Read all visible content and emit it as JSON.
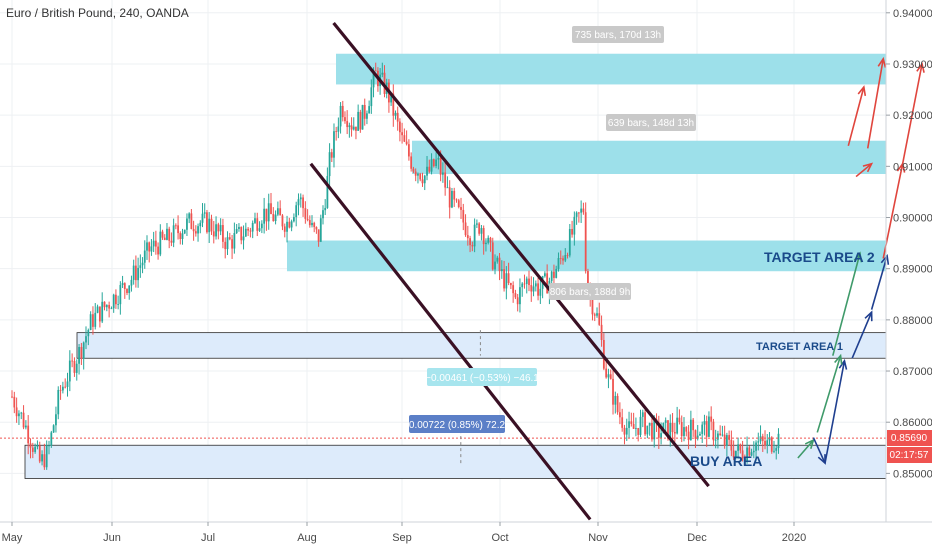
{
  "chart_data": {
    "type": "candlestick",
    "title": "Euro / British Pound, 240, OANDA",
    "x_labels": [
      "May",
      "Jun",
      "Jul",
      "Aug",
      "Sep",
      "Oct",
      "Nov",
      "Dec",
      "2020"
    ],
    "y_ticks": [
      "0.94000",
      "0.93000",
      "0.92000",
      "0.91000",
      "0.90000",
      "0.89000",
      "0.88000",
      "0.87000",
      "0.86000",
      "0.85000"
    ],
    "ylim": [
      0.8405,
      0.9425
    ],
    "current_price": "0.85690",
    "countdown": "02:17:57",
    "price_path": [
      [
        0.0,
        0.865
      ],
      [
        0.3,
        0.86
      ],
      [
        0.5,
        0.856
      ],
      [
        0.7,
        0.852
      ],
      [
        0.9,
        0.854
      ],
      [
        1.2,
        0.866
      ],
      [
        1.7,
        0.874
      ],
      [
        2.0,
        0.88
      ],
      [
        2.5,
        0.884
      ],
      [
        3.0,
        0.888
      ],
      [
        3.5,
        0.894
      ],
      [
        4.0,
        0.896
      ],
      [
        4.5,
        0.899
      ],
      [
        5.0,
        0.899
      ],
      [
        5.5,
        0.895
      ],
      [
        6.0,
        0.8975
      ],
      [
        6.4,
        0.901
      ],
      [
        7.0,
        0.899
      ],
      [
        7.3,
        0.904
      ],
      [
        7.6,
        0.898
      ],
      [
        7.8,
        0.896
      ],
      [
        8.0,
        0.905
      ],
      [
        8.1,
        0.911
      ],
      [
        8.4,
        0.922
      ],
      [
        8.7,
        0.918
      ],
      [
        9.0,
        0.92
      ],
      [
        9.3,
        0.928
      ],
      [
        9.6,
        0.925
      ],
      [
        9.8,
        0.92
      ],
      [
        10.0,
        0.915
      ],
      [
        10.3,
        0.91
      ],
      [
        10.6,
        0.908
      ],
      [
        10.9,
        0.911
      ],
      [
        11.2,
        0.904
      ],
      [
        11.5,
        0.9
      ],
      [
        11.8,
        0.896
      ],
      [
        12.0,
        0.899
      ],
      [
        12.3,
        0.892
      ],
      [
        12.6,
        0.888
      ],
      [
        12.9,
        0.884
      ],
      [
        13.2,
        0.888
      ],
      [
        13.5,
        0.886
      ],
      [
        13.8,
        0.888
      ],
      [
        14.0,
        0.891
      ],
      [
        14.3,
        0.896
      ],
      [
        14.5,
        0.9
      ],
      [
        14.65,
        0.902
      ],
      [
        14.7,
        0.887
      ],
      [
        15.0,
        0.88
      ],
      [
        15.2,
        0.87
      ],
      [
        15.5,
        0.862
      ],
      [
        15.8,
        0.858
      ],
      [
        16.1,
        0.86
      ],
      [
        16.5,
        0.858
      ],
      [
        17.0,
        0.859
      ],
      [
        17.5,
        0.8585
      ],
      [
        17.8,
        0.859
      ],
      [
        18.2,
        0.856
      ],
      [
        18.6,
        0.854
      ],
      [
        19.0,
        0.856
      ],
      [
        19.3,
        0.8555
      ],
      [
        19.6,
        0.857
      ]
    ],
    "zones": [
      {
        "name": "target-zone-2-top",
        "from": 0.926,
        "to": 0.932,
        "style": "cyan"
      },
      {
        "name": "target-zone-2-mid",
        "from": 0.9085,
        "to": 0.915,
        "style": "cyan"
      },
      {
        "name": "target-zone-2-low",
        "from": 0.8895,
        "to": 0.8955,
        "style": "cyan"
      },
      {
        "name": "target-area-1",
        "from": 0.8725,
        "to": 0.8775,
        "style": "light"
      },
      {
        "name": "buy-area",
        "from": 0.849,
        "to": 0.8555,
        "style": "light"
      }
    ],
    "labels": {
      "target_area_2": "TARGET AREA 2",
      "target_area_1": "TARGET AREA 1",
      "buy_area": "BUY AREA"
    },
    "measurements": [
      {
        "name": "bars-735",
        "text": "735 bars, 170d 13h"
      },
      {
        "name": "bars-639",
        "text": "639 bars, 148d 13h"
      },
      {
        "name": "bars-806",
        "text": "806 bars, 188d 9h"
      },
      {
        "name": "range-negative",
        "text": "−0.00461 (−0.53%) −46.1"
      },
      {
        "name": "range-positive",
        "text": "0.00722 (0.85%) 72.2"
      }
    ],
    "colors": {
      "bull": "#26a69a",
      "bear": "#ef5350",
      "channel": "#3a1024",
      "zone_cyan": "#9de0ea",
      "zone_light": "#ddebfb",
      "price_tag": "#ef5350",
      "label": "#1a4a8a"
    }
  }
}
